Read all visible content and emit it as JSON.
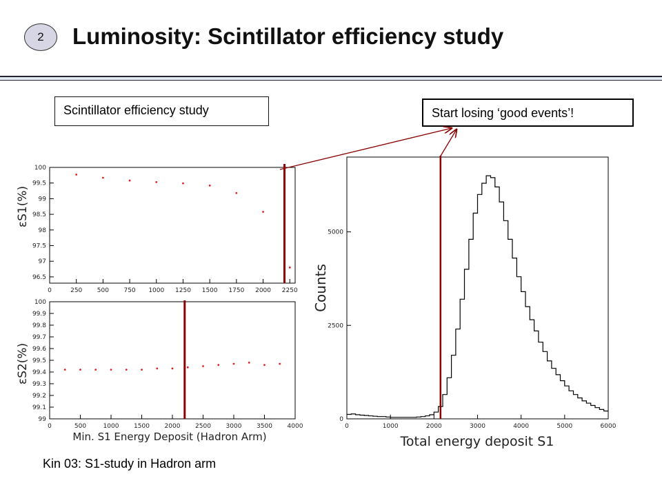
{
  "slide": {
    "number": "2",
    "title": "Luminosity: Scintillator efficiency study",
    "box_left": "Scintillator efficiency study",
    "box_right": "Start losing ‘good events’!",
    "caption": "Kin 03: S1-study in Hadron arm"
  },
  "colors": {
    "points": "#e02020",
    "cut_line": "#8b0000",
    "histogram": "#000000",
    "arrow": "#8b0000"
  },
  "chart_data": [
    {
      "type": "scatter",
      "ylabel": "εS1(%)",
      "xlim": [
        0,
        2300
      ],
      "ylim": [
        96.3,
        100
      ],
      "xticks": [
        "0",
        "250",
        "500",
        "750",
        "1000",
        "1250",
        "1500",
        "1750",
        "2000",
        "2250"
      ],
      "yticks": [
        "96.5",
        "97",
        "97.5",
        "98",
        "98.5",
        "99",
        "99.5",
        "100"
      ],
      "x": [
        250,
        500,
        750,
        1000,
        1250,
        1500,
        1750,
        2000,
        2250
      ],
      "y": [
        99.77,
        99.67,
        99.58,
        99.53,
        99.49,
        99.42,
        99.18,
        98.58,
        96.8
      ],
      "cut_x": 2200
    },
    {
      "type": "scatter",
      "xlabel": "Min. S1 Energy Deposit (Hadron Arm)",
      "ylabel": "εS2(%)",
      "xlim": [
        0,
        4000
      ],
      "ylim": [
        99,
        100
      ],
      "xticks": [
        "0",
        "500",
        "1000",
        "1500",
        "2000",
        "2500",
        "3000",
        "3500",
        "4000"
      ],
      "yticks": [
        "99",
        "99.1",
        "99.2",
        "99.3",
        "99.4",
        "99.5",
        "99.6",
        "99.7",
        "99.8",
        "99.9",
        "100"
      ],
      "x": [
        250,
        500,
        750,
        1000,
        1250,
        1500,
        1750,
        2000,
        2250,
        2500,
        2750,
        3000,
        3250,
        3500,
        3750
      ],
      "y": [
        99.42,
        99.42,
        99.42,
        99.42,
        99.42,
        99.42,
        99.43,
        99.43,
        99.44,
        99.45,
        99.46,
        99.47,
        99.48,
        99.46,
        99.47
      ],
      "cut_x": 2200
    },
    {
      "type": "histogram",
      "xlabel": "Total energy deposit S1",
      "ylabel": "Counts",
      "xlim": [
        0,
        6000
      ],
      "ylim": [
        0,
        7000
      ],
      "xticks": [
        "0",
        "1000",
        "2000",
        "3000",
        "4000",
        "5000",
        "6000"
      ],
      "yticks": [
        "0",
        "2500",
        "5000"
      ],
      "x": [
        0,
        100,
        200,
        300,
        400,
        500,
        600,
        700,
        800,
        900,
        1000,
        1100,
        1200,
        1300,
        1400,
        1500,
        1600,
        1700,
        1800,
        1900,
        2000,
        2100,
        2200,
        2300,
        2400,
        2500,
        2600,
        2700,
        2800,
        2900,
        3000,
        3100,
        3200,
        3300,
        3400,
        3500,
        3600,
        3700,
        3800,
        3900,
        4000,
        4100,
        4200,
        4300,
        4400,
        4500,
        4600,
        4700,
        4800,
        4900,
        5000,
        5100,
        5200,
        5300,
        5400,
        5500,
        5600,
        5700,
        5800,
        5900
      ],
      "y": [
        120,
        130,
        110,
        100,
        90,
        80,
        70,
        60,
        60,
        50,
        40,
        40,
        40,
        40,
        40,
        40,
        50,
        60,
        80,
        110,
        180,
        330,
        650,
        1100,
        1700,
        2400,
        3200,
        4000,
        4800,
        5500,
        6000,
        6300,
        6500,
        6450,
        6200,
        5800,
        5300,
        4800,
        4300,
        3800,
        3400,
        3000,
        2650,
        2350,
        2050,
        1800,
        1550,
        1350,
        1180,
        1020,
        880,
        750,
        650,
        560,
        480,
        420,
        360,
        300,
        250,
        210
      ],
      "cut_x": 2150
    }
  ]
}
